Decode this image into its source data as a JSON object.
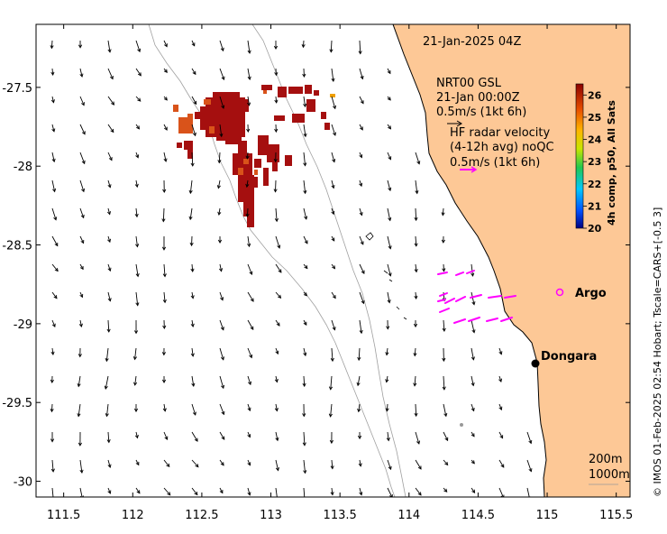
{
  "header": {
    "timestamp": "21-Jan-2025 04Z",
    "credit": "© IMOS 01-Feb-2025 02:54 Hobart; Tscale=CARS+[-0.5 3]"
  },
  "legend": {
    "gsl_line1": "NRT00 GSL",
    "gsl_line2": "21-Jan 00:00Z",
    "gsl_line3": "0.5m/s (1kt 6h)",
    "hf_line1": "HF radar velocity",
    "hf_line2": "(4-12h avg) noQC",
    "hf_line3": "0.5m/s (1kt 6h)",
    "depth_200": "200m",
    "depth_1000": "1000m"
  },
  "places": {
    "argo": "Argo",
    "dongara": "Dongara"
  },
  "colorbar": {
    "title": "4h comp, p50, All Sats",
    "ticks": [
      "20",
      "21",
      "22",
      "23",
      "24",
      "25",
      "26"
    ],
    "min": 20,
    "max": 26.5
  },
  "axes": {
    "x_ticks": [
      "111.5",
      "112",
      "112.5",
      "113",
      "113.5",
      "114",
      "114.5",
      "115",
      "115.5"
    ],
    "x_values": [
      111.5,
      112,
      112.5,
      113,
      113.5,
      114,
      114.5,
      115,
      115.5
    ],
    "y_ticks": [
      "-27.5",
      "-28",
      "-28.5",
      "-29",
      "-29.5",
      "-30"
    ],
    "y_values": [
      -27.5,
      -28,
      -28.5,
      -29,
      -29.5,
      -30
    ],
    "lon_range": [
      111.3,
      115.6
    ],
    "lat_range": [
      -30.1,
      -27.1
    ]
  },
  "colors": {
    "land": "#fdc896",
    "sst_hot": "#a50f0f",
    "sst_warm": "#d9531a",
    "hf_radar": "#ff00ff",
    "argo": "#ff00ff",
    "contour": "#999999"
  }
}
